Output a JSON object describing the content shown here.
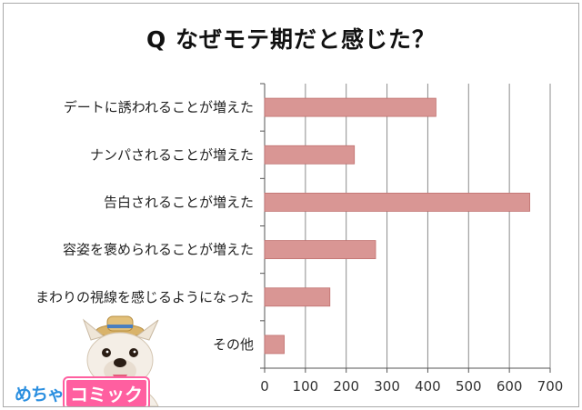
{
  "title": "Q なぜモテ期だと感じた？",
  "logo": {
    "part1": "めちゃ",
    "part2": "コミック"
  },
  "chart_data": {
    "type": "bar",
    "orientation": "horizontal",
    "categories": [
      "デートに誘われることが増えた",
      "ナンパされることが増えた",
      "告白されることが増えた",
      "容姿を褒められることが増えた",
      "まわりの視線を感じるようになった",
      "その他"
    ],
    "values": [
      420,
      220,
      650,
      272,
      160,
      48
    ],
    "xlim": [
      0,
      700
    ],
    "xticks": [
      0,
      100,
      200,
      300,
      400,
      500,
      600,
      700
    ],
    "grid": "vertical",
    "bar_color": "#d99694",
    "bar_border": "#c0706e",
    "title": "Q なぜモテ期だと感じた？"
  }
}
